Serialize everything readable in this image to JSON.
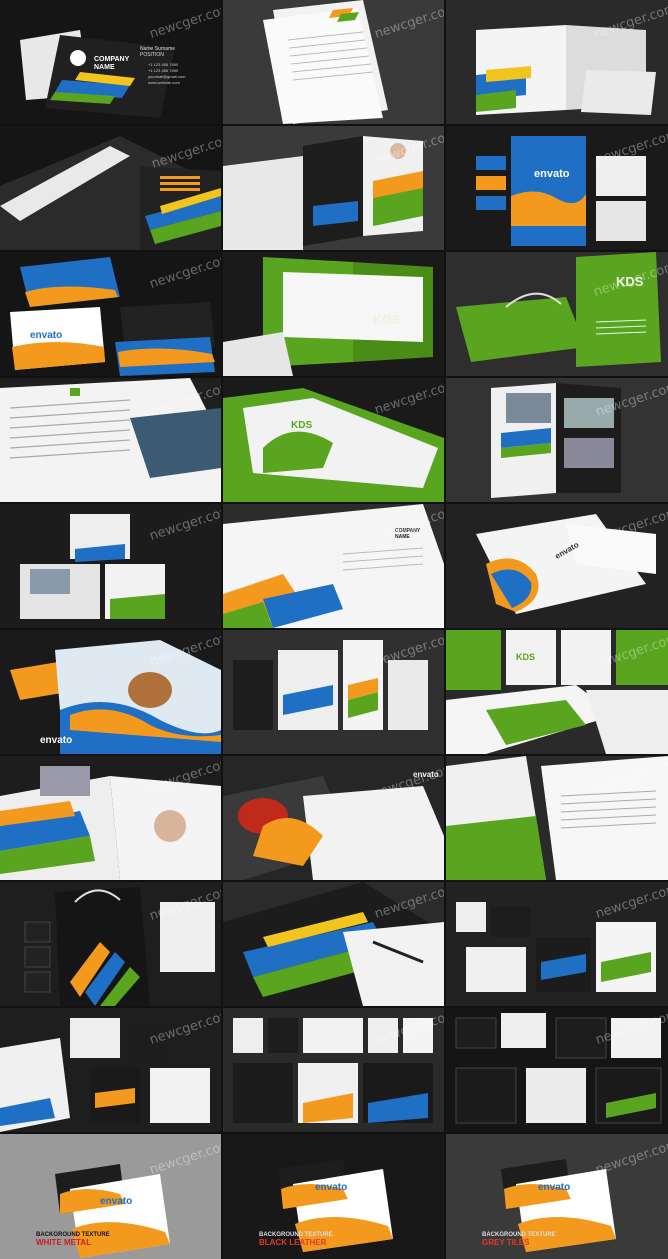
{
  "watermark": "newcger.com",
  "tile1": {
    "name_line": "Name Surname",
    "position": "POSITION",
    "company_line1": "COMPANY",
    "company_line2": "NAME",
    "contacts": [
      "+1 123 456 7890",
      "+1 123 456 7890",
      "yourmail@gmail.com",
      "www.website.com"
    ]
  },
  "brand_envato": "envato",
  "brand_kds": "KDS",
  "company_short1": "COMPANY",
  "company_short2": "NAME",
  "texture_labels": [
    {
      "line1": "BACKGROUND TEXTURE",
      "line2": "WHITE METAL"
    },
    {
      "line1": "BACKGROUND TEXTURE",
      "line2": "BLACK LEATHER"
    },
    {
      "line1": "BACKGROUND TEXTURE",
      "line2": "GREY TILES"
    }
  ],
  "colors": {
    "bg_dark": "#1a1a1a",
    "green": "#5aa51f",
    "orange": "#f39a1e",
    "blue": "#1f6fc4",
    "yellow": "#f2c51e",
    "red_label": "#e03a2a"
  }
}
